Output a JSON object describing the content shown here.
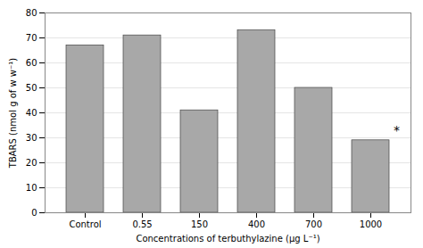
{
  "chart_data": {
    "type": "bar",
    "xlabel": "Concentrations of terbuthylazine (μg L⁻¹)",
    "ylabel": "TBARS (nmol g of w w⁻¹)",
    "categories": [
      "Control",
      "0.55",
      "150",
      "400",
      "700",
      "1000"
    ],
    "values": [
      67,
      71,
      41,
      73,
      50,
      29
    ],
    "color": "#a8a8a8",
    "ylim": [
      0,
      80
    ],
    "yticks": [
      0,
      10,
      20,
      30,
      40,
      50,
      60,
      70,
      80
    ],
    "grid": true,
    "annotations": [
      {
        "text": "*",
        "category": "1000",
        "y": 33
      }
    ]
  }
}
